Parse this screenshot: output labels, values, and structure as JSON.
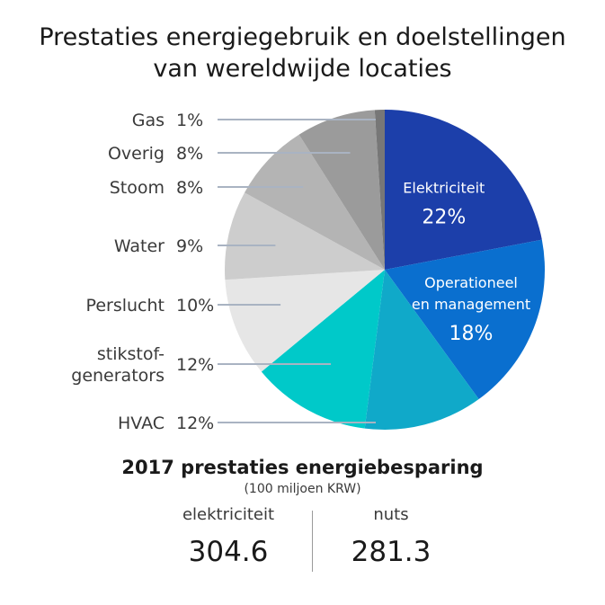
{
  "title": {
    "line1": "Prestaties energiegebruik en doelstellingen",
    "line2": "van wereldwijde locaties"
  },
  "chart_data": {
    "type": "pie",
    "title": "Prestaties energiegebruik en doelstellingen van wereldwijde locaties",
    "unit": "%",
    "slices": [
      {
        "name": "Elektriciteit",
        "value": 22,
        "label_lines": [
          "Elektriciteit"
        ],
        "color": "#1c3faa",
        "label_inside": true
      },
      {
        "name": "Operationeel en management",
        "value": 18,
        "label_lines": [
          "Operationeel",
          "en management"
        ],
        "color": "#0a6fcf",
        "label_inside": true
      },
      {
        "name": "",
        "value": 12,
        "label_lines": [],
        "color": "#10a9c9",
        "label_inside": false
      },
      {
        "name": "stikstof-generators",
        "value": 12,
        "label_lines": [
          "stikstof-",
          "generators"
        ],
        "color": "#00c9c9",
        "label_inside": false
      },
      {
        "name": "Perslucht",
        "value": 10,
        "label_lines": [
          "Perslucht"
        ],
        "color": "#e6e6e6",
        "label_inside": false
      },
      {
        "name": "Water",
        "value": 9,
        "label_lines": [
          "Water"
        ],
        "color": "#cdcdcd",
        "label_inside": false
      },
      {
        "name": "Stoom",
        "value": 8,
        "label_lines": [
          "Stoom"
        ],
        "color": "#b4b4b4",
        "label_inside": false
      },
      {
        "name": "Overig",
        "value": 8,
        "label_lines": [
          "Overig"
        ],
        "color": "#9b9b9b",
        "label_inside": false
      },
      {
        "name": "Gas",
        "value": 1,
        "label_lines": [
          "Gas"
        ],
        "color": "#777777",
        "label_inside": false
      }
    ],
    "outside_labels": [
      {
        "name": "Gas",
        "lines": [
          "Gas"
        ],
        "value_text": "1%",
        "slice_index": 8
      },
      {
        "name": "Overig",
        "lines": [
          "Overig"
        ],
        "value_text": "8%",
        "slice_index": 7
      },
      {
        "name": "Stoom",
        "lines": [
          "Stoom"
        ],
        "value_text": "8%",
        "slice_index": 6
      },
      {
        "name": "Water",
        "lines": [
          "Water"
        ],
        "value_text": "9%",
        "slice_index": 5
      },
      {
        "name": "Perslucht",
        "lines": [
          "Perslucht"
        ],
        "value_text": "10%",
        "slice_index": 4
      },
      {
        "name": "stikstof-generators",
        "lines": [
          "stikstof-",
          "generators"
        ],
        "value_text": "12%",
        "slice_index": 3
      },
      {
        "name": "HVAC",
        "lines": [
          "HVAC"
        ],
        "value_text": "12%",
        "slice_index": 2
      }
    ]
  },
  "savings": {
    "title": "2017 prestaties energiebesparing",
    "unit": "(100 miljoen KRW)",
    "items": [
      {
        "label": "elektriciteit",
        "value": "304.6"
      },
      {
        "label": "nuts",
        "value": "281.3"
      }
    ]
  }
}
